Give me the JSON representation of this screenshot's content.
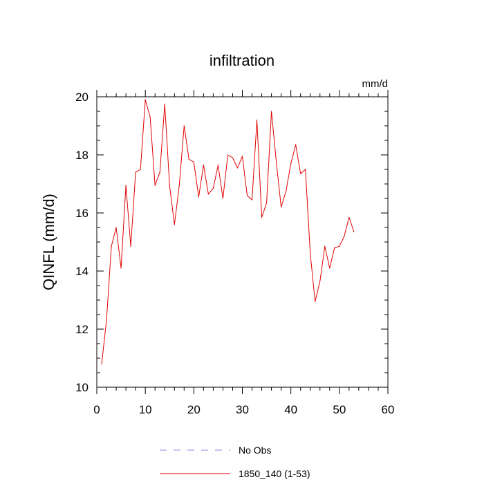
{
  "chart_data": {
    "type": "line",
    "title": "infiltration",
    "units_label": "mm/d",
    "ylabel": "QINFL  (mm/d)",
    "xlabel": "",
    "xlim": [
      0,
      60
    ],
    "ylim": [
      10,
      20
    ],
    "x_ticks": [
      0,
      10,
      20,
      30,
      40,
      50,
      60
    ],
    "y_ticks": [
      10,
      12,
      14,
      16,
      18,
      20
    ],
    "grid": false,
    "legend_position": "bottom-center",
    "legend": [
      {
        "label": "No Obs",
        "style": "dashed",
        "color": "#8a8ae6"
      },
      {
        "label": "1850_140 (1-53)",
        "style": "solid",
        "color": "#e00000"
      }
    ],
    "series": [
      {
        "name": "1850_140 (1-53)",
        "color": "#e00000",
        "x": [
          1,
          2,
          3,
          4,
          5,
          6,
          7,
          8,
          9,
          10,
          11,
          12,
          13,
          14,
          15,
          16,
          17,
          18,
          19,
          20,
          21,
          22,
          23,
          24,
          25,
          26,
          27,
          28,
          29,
          30,
          31,
          32,
          33,
          34,
          35,
          36,
          37,
          38,
          39,
          40,
          41,
          42,
          43,
          44,
          45,
          46,
          47,
          48,
          49,
          50,
          51,
          52,
          53
        ],
        "y": [
          10.8,
          12.3,
          14.85,
          15.5,
          14.1,
          16.95,
          14.85,
          17.4,
          17.5,
          19.9,
          19.3,
          16.95,
          17.4,
          19.75,
          16.95,
          15.6,
          16.95,
          19.0,
          17.85,
          17.75,
          16.55,
          17.65,
          16.65,
          16.85,
          17.65,
          16.5,
          18.0,
          17.9,
          17.55,
          17.95,
          16.6,
          16.45,
          19.2,
          15.85,
          16.35,
          19.5,
          17.75,
          16.2,
          16.75,
          17.7,
          18.35,
          17.35,
          17.5,
          14.6,
          12.95,
          13.65,
          14.85,
          14.1,
          14.8,
          14.85,
          15.2,
          15.85,
          15.35
        ]
      }
    ]
  }
}
